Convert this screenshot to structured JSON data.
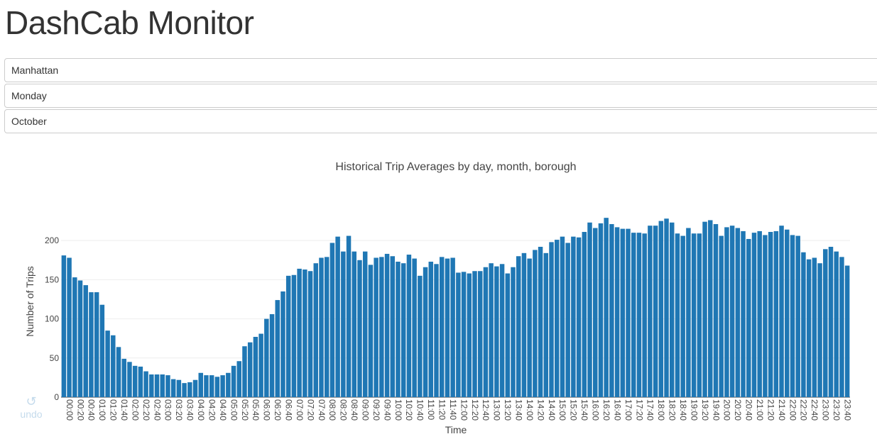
{
  "header": {
    "title": "DashCab Monitor"
  },
  "controls": {
    "borough": "Manhattan",
    "day": "Monday",
    "month": "October"
  },
  "undo": {
    "icon": "undo-icon",
    "label": "undo"
  },
  "colors": {
    "bar": "#1f77b4",
    "grid": "#eeeeee",
    "text": "#444444"
  },
  "chart_data": {
    "type": "bar",
    "title": "Historical Trip Averages by day, month, borough",
    "xlabel": "Time",
    "ylabel": "Number of Trips",
    "ylim": [
      0,
      240
    ],
    "yticks": [
      0,
      50,
      100,
      150,
      200
    ],
    "grid": true,
    "legend": "none",
    "x_tick_labels": [
      "00:00",
      "00:20",
      "00:40",
      "01:00",
      "01:20",
      "01:40",
      "02:00",
      "02:20",
      "02:40",
      "03:00",
      "03:20",
      "03:40",
      "04:00",
      "04:20",
      "04:40",
      "05:00",
      "05:20",
      "05:40",
      "06:00",
      "06:20",
      "06:40",
      "07:00",
      "07:20",
      "07:40",
      "08:00",
      "08:20",
      "08:40",
      "09:00",
      "09:20",
      "09:40",
      "10:00",
      "10:20",
      "10:40",
      "11:00",
      "11:20",
      "11:40",
      "12:00",
      "12:20",
      "12:40",
      "13:00",
      "13:20",
      "13:40",
      "14:00",
      "14:20",
      "14:40",
      "15:00",
      "15:20",
      "15:40",
      "16:00",
      "16:20",
      "16:40",
      "17:00",
      "17:20",
      "17:40",
      "18:00",
      "18:20",
      "18:40",
      "19:00",
      "19:20",
      "19:40",
      "20:00",
      "20:20",
      "20:40",
      "21:00",
      "21:20",
      "21:40",
      "22:00",
      "22:20",
      "22:40",
      "23:00",
      "23:20",
      "23:40"
    ],
    "x_tick_every": 2,
    "values": [
      181,
      178,
      153,
      149,
      143,
      134,
      134,
      118,
      85,
      79,
      64,
      49,
      45,
      40,
      39,
      33,
      29,
      29,
      29,
      28,
      23,
      22,
      18,
      19,
      22,
      31,
      28,
      28,
      26,
      28,
      31,
      40,
      46,
      65,
      70,
      77,
      81,
      100,
      106,
      124,
      135,
      155,
      156,
      164,
      163,
      161,
      171,
      178,
      179,
      197,
      205,
      186,
      206,
      186,
      175,
      186,
      169,
      178,
      179,
      183,
      180,
      173,
      171,
      182,
      177,
      155,
      166,
      173,
      170,
      179,
      177,
      178,
      159,
      160,
      158,
      161,
      161,
      166,
      171,
      167,
      170,
      158,
      166,
      180,
      184,
      177,
      188,
      192,
      184,
      198,
      201,
      205,
      197,
      205,
      204,
      211,
      223,
      216,
      222,
      229,
      221,
      217,
      215,
      215,
      210,
      210,
      209,
      219,
      219,
      225,
      228,
      223,
      209,
      206,
      216,
      209,
      209,
      224,
      226,
      221,
      206,
      217,
      219,
      216,
      212,
      202,
      210,
      212,
      207,
      211,
      212,
      219,
      214,
      207,
      206,
      185,
      176,
      178,
      171,
      189,
      192,
      186,
      179,
      168
    ]
  }
}
